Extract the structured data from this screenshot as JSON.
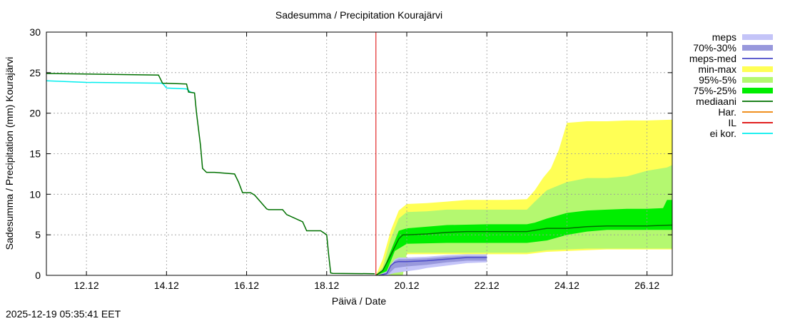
{
  "chart_data": {
    "type": "area",
    "title": "Sadesumma / Precipitation  Kourajärvi",
    "xlabel": "Päivä / Date",
    "ylabel": "Sadesumma / Precipitation (mm)  Kourajärvi",
    "x_unit": "days since 11.12 00:00",
    "xlim": [
      0,
      15.63
    ],
    "ylim": [
      0,
      30
    ],
    "yticks": [
      0,
      5,
      10,
      15,
      20,
      25,
      30
    ],
    "xticks": [
      {
        "x": 1,
        "label": "12.12"
      },
      {
        "x": 3,
        "label": "14.12"
      },
      {
        "x": 5,
        "label": "16.12"
      },
      {
        "x": 7,
        "label": "18.12"
      },
      {
        "x": 9,
        "label": "20.12"
      },
      {
        "x": 11,
        "label": "22.12"
      },
      {
        "x": 13,
        "label": "24.12"
      },
      {
        "x": 15,
        "label": "26.12"
      }
    ],
    "grid": true,
    "forecast_start": 8.23,
    "timestamp": "2025-12-19 05:35:41 EET",
    "colors": {
      "meps": "#c4c4f8",
      "p70_30": "#9898dc",
      "meps_med": "#4a4ac8",
      "min_max": "#ffff55",
      "p95_5": "#b4f870",
      "p75_25": "#00ee00",
      "mediaani": "#007000",
      "har": "#ee8000",
      "il": "#dd0000",
      "ei_kor": "#00eeee"
    },
    "legend": [
      {
        "key": "meps",
        "label": "meps",
        "style": "box"
      },
      {
        "key": "p70_30",
        "label": "70%-30%",
        "style": "box"
      },
      {
        "key": "meps_med",
        "label": "meps-med",
        "style": "line"
      },
      {
        "key": "min_max",
        "label": "min-max",
        "style": "box"
      },
      {
        "key": "p95_5",
        "label": "95%-5%",
        "style": "box"
      },
      {
        "key": "p75_25",
        "label": "75%-25%",
        "style": "box"
      },
      {
        "key": "mediaani",
        "label": "mediaani",
        "style": "line"
      },
      {
        "key": "har",
        "label": "Har.",
        "style": "line"
      },
      {
        "key": "il",
        "label": "IL",
        "style": "line"
      },
      {
        "key": "ei_kor",
        "label": "ei kor.",
        "style": "line"
      }
    ],
    "series": [
      {
        "name": "mediaani",
        "x": [
          0,
          2.8,
          2.9,
          3.5,
          3.55,
          3.7,
          3.75,
          3.85,
          3.9,
          4.0,
          4.05,
          4.2,
          4.7,
          4.8,
          4.9,
          5.1,
          5.2,
          5.5,
          5.55,
          5.9,
          6.0,
          6.4,
          6.5,
          6.85,
          7.0,
          7.05,
          7.1,
          7.15,
          8.2
        ],
        "y": [
          24.9,
          24.7,
          23.7,
          23.6,
          22.6,
          22.5,
          20,
          16,
          13.2,
          12.7,
          12.7,
          12.7,
          12.5,
          11.5,
          10.2,
          10.2,
          9.9,
          8.2,
          8.1,
          8.1,
          7.5,
          6.6,
          5.5,
          5.5,
          5.0,
          2.5,
          0.3,
          0.25,
          0.2
        ]
      },
      {
        "name": "ei kor.",
        "x": [
          0,
          1.0,
          2.9,
          3.0,
          3.5,
          3.6,
          3.7
        ],
        "y": [
          24.0,
          23.8,
          23.7,
          23.1,
          23.0,
          22.6,
          22.5
        ]
      },
      {
        "name": "IL",
        "x": [
          8.23,
          8.23
        ],
        "y": [
          0,
          30
        ]
      },
      {
        "name": "min-max upper",
        "x": [
          8.23,
          8.4,
          8.6,
          8.8,
          9.0,
          9.5,
          10.0,
          10.5,
          11.0,
          11.5,
          12.0,
          12.2,
          12.4,
          12.6,
          12.8,
          13.0,
          13.5,
          14.0,
          14.5,
          15.0,
          15.63
        ],
        "y": [
          0,
          2.0,
          5.5,
          8.0,
          8.8,
          8.9,
          9.1,
          9.3,
          9.3,
          9.3,
          9.4,
          10.5,
          12.0,
          13.2,
          15.5,
          18.8,
          19.0,
          19.0,
          19.1,
          19.1,
          19.2
        ]
      },
      {
        "name": "min-max lower",
        "x": [
          8.23,
          8.9,
          9.0,
          9.5,
          10.0,
          10.5,
          11.0,
          11.5,
          12.0,
          12.5,
          13.0,
          13.5,
          14.0,
          14.5,
          15.0,
          15.63
        ],
        "y": [
          0,
          0,
          2.6,
          2.6,
          2.6,
          2.6,
          2.6,
          2.6,
          2.6,
          2.9,
          3.0,
          3.1,
          3.2,
          3.2,
          3.2,
          3.2
        ]
      },
      {
        "name": "95%-5% upper",
        "x": [
          8.23,
          8.4,
          8.6,
          8.8,
          9.0,
          9.5,
          10.0,
          10.5,
          11.0,
          11.5,
          12.0,
          12.2,
          12.5,
          13.0,
          13.5,
          14.0,
          14.5,
          15.0,
          15.5,
          15.63
        ],
        "y": [
          0,
          1.0,
          4.5,
          7.0,
          7.8,
          7.9,
          8.1,
          8.1,
          8.1,
          8.1,
          8.1,
          9.1,
          10.5,
          11.5,
          12.0,
          12.0,
          12.2,
          12.9,
          13.3,
          13.6
        ]
      },
      {
        "name": "95%-5% lower",
        "x": [
          8.23,
          8.9,
          9.0,
          10.0,
          11.0,
          12.0,
          12.5,
          13.0,
          13.5,
          14.0,
          14.5,
          15.0,
          15.63
        ],
        "y": [
          0,
          0,
          2.8,
          2.8,
          2.8,
          2.8,
          3.1,
          3.2,
          3.3,
          3.3,
          3.3,
          3.3,
          3.3
        ]
      },
      {
        "name": "75%-25% upper",
        "x": [
          8.23,
          8.4,
          8.6,
          8.8,
          9.0,
          10.0,
          11.0,
          12.0,
          12.2,
          12.5,
          13.0,
          13.5,
          14.0,
          14.5,
          15.0,
          15.4,
          15.5,
          15.63
        ],
        "y": [
          0,
          0.5,
          3.0,
          5.5,
          5.8,
          6.2,
          6.3,
          6.3,
          6.5,
          7.0,
          7.7,
          8.0,
          8.1,
          8.2,
          8.2,
          8.3,
          9.3,
          9.3
        ]
      },
      {
        "name": "75%-25% lower",
        "x": [
          8.23,
          8.5,
          8.7,
          9.0,
          10.0,
          11.0,
          12.0,
          12.5,
          13.0,
          13.5,
          14.0,
          15.0,
          15.63
        ],
        "y": [
          0,
          0.5,
          3.0,
          3.9,
          4.0,
          4.0,
          4.0,
          4.3,
          5.0,
          5.4,
          5.6,
          5.6,
          5.6
        ]
      },
      {
        "name": "mediaani forecast",
        "x": [
          8.23,
          8.4,
          8.6,
          8.8,
          8.9,
          9.0,
          9.5,
          10.0,
          10.5,
          11.0,
          11.5,
          12.0,
          12.5,
          13.0,
          13.5,
          14.0,
          14.5,
          15.0,
          15.63
        ],
        "y": [
          0,
          0.6,
          2.5,
          4.5,
          5.0,
          5.0,
          5.1,
          5.3,
          5.4,
          5.4,
          5.4,
          5.4,
          5.8,
          5.8,
          6.0,
          6.1,
          6.1,
          6.1,
          6.2
        ]
      },
      {
        "name": "meps upper",
        "x": [
          8.3,
          8.5,
          8.6,
          8.7,
          8.8,
          9.0,
          9.5,
          10.0,
          10.5,
          11.0
        ],
        "y": [
          0,
          0.5,
          1.3,
          2.0,
          2.2,
          2.2,
          2.3,
          2.5,
          2.6,
          2.6
        ]
      },
      {
        "name": "meps lower",
        "x": [
          8.3,
          8.5,
          8.7,
          9.0,
          9.3,
          9.5,
          10.0,
          10.5,
          11.0
        ],
        "y": [
          0,
          0,
          0.3,
          0.5,
          0.7,
          0.9,
          1.2,
          1.5,
          1.6
        ]
      },
      {
        "name": "70%-30% upper",
        "x": [
          8.3,
          8.5,
          8.6,
          8.7,
          8.8,
          9.0,
          9.5,
          10.0,
          10.5,
          11.0
        ],
        "y": [
          0,
          0.4,
          1.2,
          1.8,
          2.0,
          2.0,
          2.1,
          2.3,
          2.4,
          2.4
        ]
      },
      {
        "name": "70%-30% lower",
        "x": [
          8.3,
          8.55,
          8.7,
          9.0,
          9.5,
          10.0,
          10.5,
          11.0
        ],
        "y": [
          0,
          0.2,
          0.9,
          1.1,
          1.3,
          1.6,
          1.8,
          1.8
        ]
      },
      {
        "name": "meps-med",
        "x": [
          8.3,
          8.5,
          8.6,
          8.7,
          8.8,
          9.0,
          9.5,
          10.0,
          10.5,
          11.0
        ],
        "y": [
          0,
          0.2,
          1.2,
          1.6,
          1.7,
          1.7,
          1.8,
          2.0,
          2.2,
          2.2
        ]
      }
    ]
  }
}
